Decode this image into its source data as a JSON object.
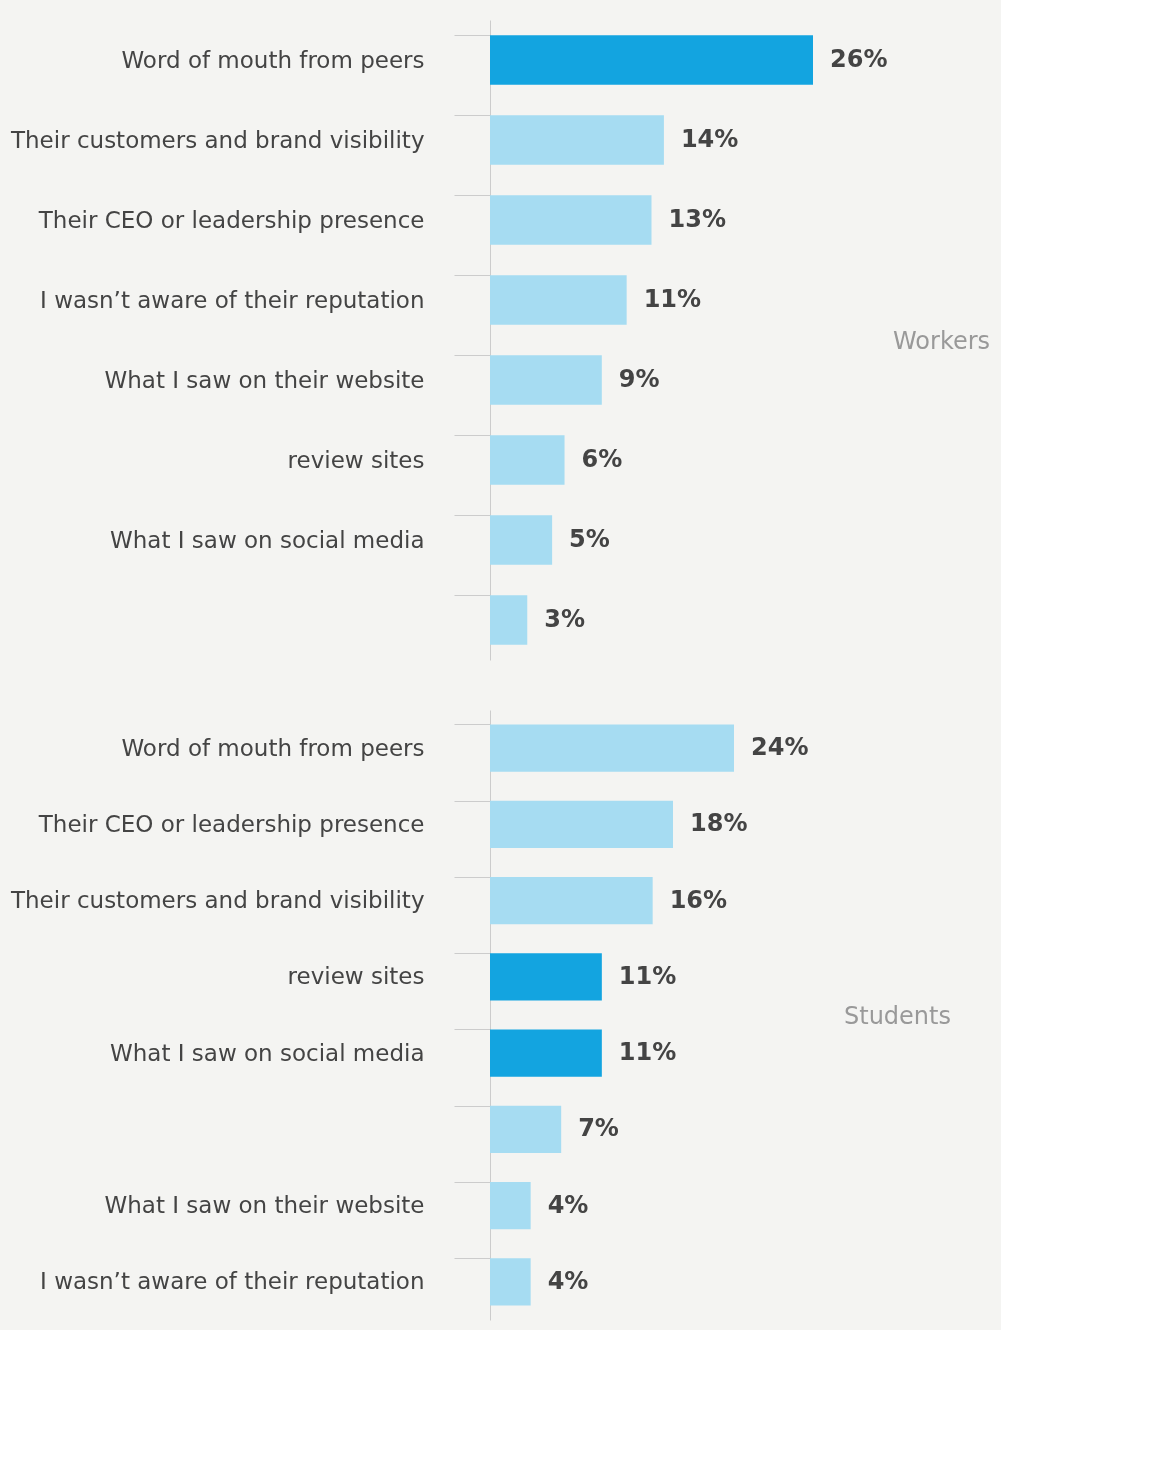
{
  "chart_data": [
    {
      "type": "bar",
      "orientation": "horizontal",
      "categories": [
        "Word of mouth from peers",
        "Their customers and brand visibility",
        "Their CEO or leadership presence",
        "I wasn’t aware of their reputation",
        "What I saw on their website",
        "review sites",
        "What I saw on social media",
        null
      ],
      "values": [
        26,
        14,
        13,
        11,
        9,
        6,
        5,
        3
      ],
      "colors": [
        "#13a4e0",
        "#a6dcf2",
        "#a6dcf2",
        "#a6dcf2",
        "#a6dcf2",
        "#a6dcf2",
        "#a6dcf2",
        "#a6dcf2"
      ],
      "value_labels": [
        "26%",
        "14%",
        "13%",
        "11%",
        "9%",
        "6%",
        "5%",
        "3%"
      ],
      "annotations": [
        "Workers"
      ],
      "grid": false,
      "tick_labels": "y"
    },
    {
      "type": "bar",
      "orientation": "horizontal",
      "categories": [
        "Word of mouth from peers",
        "Their CEO or leadership presence",
        "Their customers and brand visibility",
        "review sites",
        "What I saw on social media",
        null,
        "What I saw on their website",
        "I wasn’t aware of their reputation"
      ],
      "values": [
        24,
        18,
        16,
        11,
        11,
        7,
        4,
        4
      ],
      "colors": [
        "#a6dcf2",
        "#a6dcf2",
        "#a6dcf2",
        "#13a4e0",
        "#13a4e0",
        "#a6dcf2",
        "#a6dcf2",
        "#a6dcf2"
      ],
      "value_labels": [
        "24%",
        "18%",
        "16%",
        "11%",
        "11%",
        "7%",
        "4%",
        "4%"
      ],
      "annotations": [
        "Students"
      ],
      "grid": false,
      "tick_labels": "y"
    }
  ]
}
